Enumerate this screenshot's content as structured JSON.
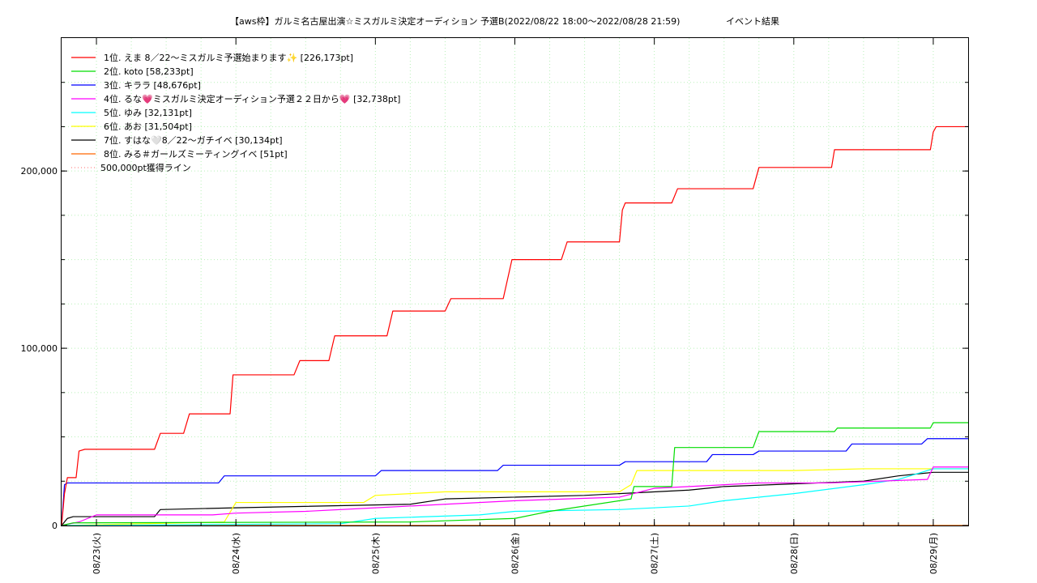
{
  "chart_data": {
    "type": "line",
    "title": "【aws枠】ガルミ名古屋出演☆ミスガルミ決定オーディション 予選B(2022/08/22 18:00～2022/08/28 21:59)",
    "subtitle": "イベント結果",
    "xlabel": "",
    "ylabel": "",
    "ylim": [
      0,
      275000
    ],
    "xlim": [
      "2022/08/22 18:00",
      "2022/08/29 06:00"
    ],
    "y_ticks": [
      {
        "value": 0,
        "label": "0"
      },
      {
        "value": 100000,
        "label": "100,000"
      },
      {
        "value": 200000,
        "label": "200,000"
      }
    ],
    "x_ticks": [
      {
        "value": "2022/08/23 00:00",
        "label": "08/23(火)"
      },
      {
        "value": "2022/08/24 00:00",
        "label": "08/24(水)"
      },
      {
        "value": "2022/08/25 00:00",
        "label": "08/25(木)"
      },
      {
        "value": "2022/08/26 00:00",
        "label": "08/26(金)"
      },
      {
        "value": "2022/08/27 00:00",
        "label": "08/27(土)"
      },
      {
        "value": "2022/08/28 00:00",
        "label": "08/28(日)"
      },
      {
        "value": "2022/08/29 00:00",
        "label": "08/29(月)"
      }
    ],
    "grid": true,
    "legend_position": "top-left",
    "series": [
      {
        "name": "1位. えま 8／22〜ミスガルミ予選始まります✨ [226,173pt]",
        "color": "#ff0000",
        "points": [
          [
            "2022/08/22 18:00",
            0
          ],
          [
            "2022/08/22 18:30",
            18000
          ],
          [
            "2022/08/22 19:00",
            27000
          ],
          [
            "2022/08/22 20:30",
            27000
          ],
          [
            "2022/08/22 21:00",
            42000
          ],
          [
            "2022/08/22 22:00",
            43000
          ],
          [
            "2022/08/23 10:00",
            43000
          ],
          [
            "2022/08/23 11:00",
            52000
          ],
          [
            "2022/08/23 15:00",
            52000
          ],
          [
            "2022/08/23 16:00",
            63000
          ],
          [
            "2022/08/23 23:00",
            63000
          ],
          [
            "2022/08/23 23:30",
            85000
          ],
          [
            "2022/08/24 10:00",
            85000
          ],
          [
            "2022/08/24 11:00",
            93000
          ],
          [
            "2022/08/24 16:00",
            93000
          ],
          [
            "2022/08/24 17:00",
            107000
          ],
          [
            "2022/08/25 02:00",
            107000
          ],
          [
            "2022/08/25 03:00",
            121000
          ],
          [
            "2022/08/25 12:00",
            121000
          ],
          [
            "2022/08/25 13:00",
            128000
          ],
          [
            "2022/08/25 22:00",
            128000
          ],
          [
            "2022/08/25 23:30",
            150000
          ],
          [
            "2022/08/26 08:00",
            150000
          ],
          [
            "2022/08/26 09:00",
            160000
          ],
          [
            "2022/08/26 18:00",
            160000
          ],
          [
            "2022/08/26 18:30",
            178000
          ],
          [
            "2022/08/26 19:00",
            182000
          ],
          [
            "2022/08/27 03:00",
            182000
          ],
          [
            "2022/08/27 04:00",
            190000
          ],
          [
            "2022/08/27 17:00",
            190000
          ],
          [
            "2022/08/27 18:00",
            202000
          ],
          [
            "2022/08/28 06:30",
            202000
          ],
          [
            "2022/08/28 07:00",
            212000
          ],
          [
            "2022/08/28 23:30",
            212000
          ],
          [
            "2022/08/29 00:00",
            222000
          ],
          [
            "2022/08/29 00:30",
            225000
          ],
          [
            "2022/08/29 06:00",
            225000
          ]
        ]
      },
      {
        "name": "2位. koto [58,233pt]",
        "color": "#00dd00",
        "points": [
          [
            "2022/08/22 18:00",
            0
          ],
          [
            "2022/08/22 20:00",
            1500
          ],
          [
            "2022/08/25 06:00",
            2000
          ],
          [
            "2022/08/26 00:00",
            4000
          ],
          [
            "2022/08/26 06:00",
            8000
          ],
          [
            "2022/08/26 20:00",
            15000
          ],
          [
            "2022/08/26 20:30",
            22000
          ],
          [
            "2022/08/27 03:00",
            22000
          ],
          [
            "2022/08/27 03:30",
            44000
          ],
          [
            "2022/08/27 17:00",
            44000
          ],
          [
            "2022/08/27 18:00",
            53000
          ],
          [
            "2022/08/28 07:00",
            53000
          ],
          [
            "2022/08/28 07:30",
            55000
          ],
          [
            "2022/08/28 23:30",
            55000
          ],
          [
            "2022/08/29 00:00",
            58000
          ],
          [
            "2022/08/29 06:00",
            58000
          ]
        ]
      },
      {
        "name": "3位. キララ [48,676pt]",
        "color": "#0000ff",
        "points": [
          [
            "2022/08/22 18:00",
            0
          ],
          [
            "2022/08/22 18:30",
            23000
          ],
          [
            "2022/08/22 19:00",
            24000
          ],
          [
            "2022/08/23 21:00",
            24000
          ],
          [
            "2022/08/23 22:00",
            28000
          ],
          [
            "2022/08/25 00:00",
            28000
          ],
          [
            "2022/08/25 01:00",
            31000
          ],
          [
            "2022/08/25 21:00",
            31000
          ],
          [
            "2022/08/25 22:00",
            34000
          ],
          [
            "2022/08/26 18:00",
            34000
          ],
          [
            "2022/08/26 19:00",
            36000
          ],
          [
            "2022/08/27 09:00",
            36000
          ],
          [
            "2022/08/27 10:00",
            40000
          ],
          [
            "2022/08/27 17:00",
            40000
          ],
          [
            "2022/08/27 18:00",
            42000
          ],
          [
            "2022/08/28 09:00",
            42000
          ],
          [
            "2022/08/28 10:00",
            46000
          ],
          [
            "2022/08/28 22:00",
            46000
          ],
          [
            "2022/08/28 23:00",
            49000
          ],
          [
            "2022/08/29 06:00",
            49000
          ]
        ]
      },
      {
        "name": "4位. るな💗ミスガルミ決定オーディション予選２２日から💗 [32,738pt]",
        "color": "#ff00ff",
        "points": [
          [
            "2022/08/22 18:00",
            0
          ],
          [
            "2022/08/22 21:00",
            2000
          ],
          [
            "2022/08/23 00:00",
            6000
          ],
          [
            "2022/08/23 20:00",
            6000
          ],
          [
            "2022/08/24 00:00",
            7000
          ],
          [
            "2022/08/24 12:00",
            8000
          ],
          [
            "2022/08/25 00:00",
            10000
          ],
          [
            "2022/08/25 06:00",
            11000
          ],
          [
            "2022/08/26 00:00",
            14000
          ],
          [
            "2022/08/26 18:00",
            16000
          ],
          [
            "2022/08/27 00:00",
            21000
          ],
          [
            "2022/08/27 06:00",
            22000
          ],
          [
            "2022/08/27 18:00",
            24000
          ],
          [
            "2022/08/28 06:00",
            24000
          ],
          [
            "2022/08/28 23:00",
            26000
          ],
          [
            "2022/08/29 00:00",
            33000
          ],
          [
            "2022/08/29 06:00",
            33000
          ]
        ]
      },
      {
        "name": "5位. ゆみ [32,131pt]",
        "color": "#00ffff",
        "points": [
          [
            "2022/08/22 18:00",
            0
          ],
          [
            "2022/08/24 18:00",
            1000
          ],
          [
            "2022/08/25 00:00",
            4000
          ],
          [
            "2022/08/25 18:00",
            6000
          ],
          [
            "2022/08/26 00:00",
            8000
          ],
          [
            "2022/08/26 18:00",
            9000
          ],
          [
            "2022/08/27 06:00",
            11000
          ],
          [
            "2022/08/27 12:00",
            14000
          ],
          [
            "2022/08/28 00:00",
            18000
          ],
          [
            "2022/08/28 12:00",
            23000
          ],
          [
            "2022/08/28 18:00",
            26000
          ],
          [
            "2022/08/29 00:00",
            32000
          ],
          [
            "2022/08/29 06:00",
            32000
          ]
        ]
      },
      {
        "name": "6位. あお [31,504pt]",
        "color": "#ffff00",
        "points": [
          [
            "2022/08/22 18:00",
            0
          ],
          [
            "2022/08/23 22:00",
            2000
          ],
          [
            "2022/08/24 00:00",
            13000
          ],
          [
            "2022/08/24 22:00",
            13000
          ],
          [
            "2022/08/25 00:00",
            17000
          ],
          [
            "2022/08/25 12:00",
            19000
          ],
          [
            "2022/08/26 18:00",
            19000
          ],
          [
            "2022/08/26 20:00",
            23000
          ],
          [
            "2022/08/26 21:00",
            31000
          ],
          [
            "2022/08/28 00:00",
            31000
          ],
          [
            "2022/08/28 12:00",
            32000
          ],
          [
            "2022/08/29 06:00",
            32000
          ]
        ]
      },
      {
        "name": "7位. すはな🤍8／22〜ガチイベ [30,134pt]",
        "color": "#000000",
        "points": [
          [
            "2022/08/22 18:00",
            0
          ],
          [
            "2022/08/22 19:00",
            4000
          ],
          [
            "2022/08/22 20:00",
            5000
          ],
          [
            "2022/08/23 10:00",
            5000
          ],
          [
            "2022/08/23 11:00",
            9000
          ],
          [
            "2022/08/24 00:00",
            10000
          ],
          [
            "2022/08/25 06:00",
            12000
          ],
          [
            "2022/08/25 12:00",
            15000
          ],
          [
            "2022/08/26 12:00",
            17000
          ],
          [
            "2022/08/27 06:00",
            20000
          ],
          [
            "2022/08/27 12:00",
            22000
          ],
          [
            "2022/08/28 12:00",
            25000
          ],
          [
            "2022/08/28 18:00",
            28000
          ],
          [
            "2022/08/29 00:00",
            30000
          ],
          [
            "2022/08/29 06:00",
            30000
          ]
        ]
      },
      {
        "name": "8位. みる＃ガールズミーティングイベ [51pt]",
        "color": "#ff6600",
        "points": [
          [
            "2022/08/22 18:00",
            0
          ],
          [
            "2022/08/22 19:00",
            51
          ],
          [
            "2022/08/29 06:00",
            51
          ]
        ]
      },
      {
        "name": "500,000pt獲得ライン",
        "color": "#ff8888",
        "dashed": true,
        "points": []
      }
    ]
  }
}
